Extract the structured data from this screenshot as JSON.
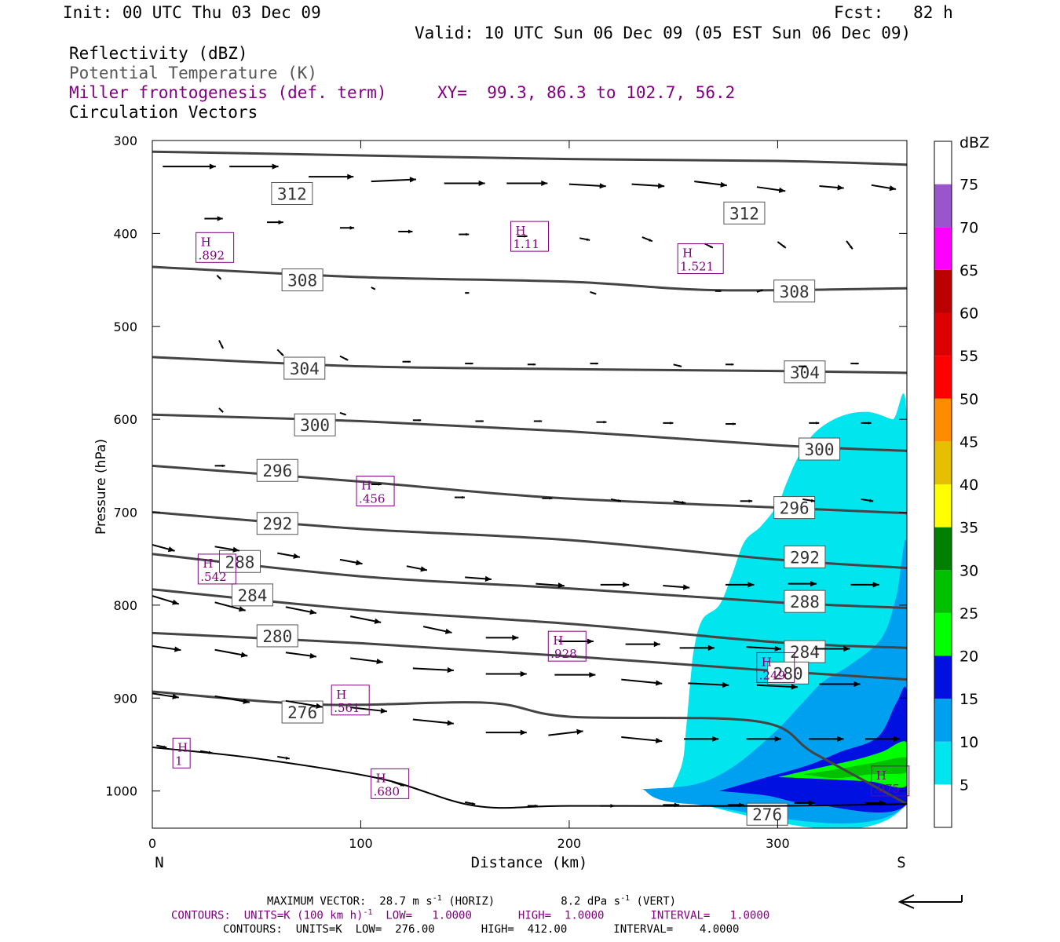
{
  "header": {
    "init": "Init: 00 UTC Thu 03 Dec 09",
    "fcst": "Fcst:   82 h",
    "valid": "Valid: 10 UTC Sun 06 Dec 09 (05 EST Sun 06 Dec 09)",
    "field_reflectivity": "Reflectivity (dBZ)",
    "field_theta": "Potential Temperature (K)",
    "field_frontogenesis": "Miller frontogenesis (def. term)",
    "xy_range": "XY=  99.3, 86.3 to 102.7, 56.2",
    "field_vectors": "Circulation Vectors"
  },
  "footer": {
    "max_vector_prefix": "MAXIMUM VECTOR:  28.7 m s",
    "max_vector_exp1": "-1",
    "max_vector_horiz": " (HORIZ)",
    "max_vector_vert_prefix": "8.2 dPa s",
    "max_vector_exp2": "-1",
    "max_vector_vert": " (VERT)",
    "contours_fronto_a": "CONTOURS:  UNITS=K (100 km h)",
    "contours_fronto_exp": "-1",
    "contours_fronto_b": "  LOW=   1.0000       HIGH=  1.0000       INTERVAL=   1.0000",
    "contours_theta": "CONTOURS:  UNITS=K  LOW=  276.00       HIGH=  412.00       INTERVAL=    4.0000"
  },
  "colors": {
    "theta": "#444444",
    "vectors": "#000000",
    "fronto": "#800080",
    "fill_5": "#00e5ee",
    "fill_10": "#00a0f0",
    "fill_15": "#0010e0",
    "fill_20": "#00ff00",
    "fill_25": "#00c000"
  },
  "chart_data": {
    "type": "cross-section",
    "xlabel": "Distance (km)",
    "ylabel": "Pressure (hPa)",
    "xlim": [
      0,
      362
    ],
    "ylim": [
      300,
      1040
    ],
    "y_scale": "pressure (inverted)",
    "x_ticks": [
      0,
      100,
      200,
      300
    ],
    "y_ticks": [
      300,
      400,
      500,
      600,
      700,
      800,
      900,
      1000
    ],
    "x_end_labels": [
      "N",
      "S"
    ],
    "colorbar": {
      "title": "dBZ",
      "levels": [
        5,
        10,
        15,
        20,
        25,
        30,
        35,
        40,
        45,
        50,
        55,
        60,
        65,
        70,
        75
      ],
      "colors": [
        "#ffffff",
        "#00e5ee",
        "#00a0f0",
        "#0010e0",
        "#00ff00",
        "#00c000",
        "#008000",
        "#ffff00",
        "#e6c000",
        "#ff8c00",
        "#ff0000",
        "#dd0000",
        "#bb0000",
        "#ff00ff",
        "#9955cc",
        "#ffffff"
      ]
    },
    "theta_contours": [
      {
        "label": "312",
        "points": [
          [
            0,
            312
          ],
          [
            100,
            316
          ],
          [
            200,
            320
          ],
          [
            300,
            322
          ],
          [
            362,
            326
          ]
        ],
        "labels_at": [
          [
            67,
            357
          ],
          [
            284,
            378
          ]
        ]
      },
      {
        "label": "308",
        "points": [
          [
            0,
            436
          ],
          [
            100,
            447
          ],
          [
            200,
            452
          ],
          [
            270,
            461
          ],
          [
            362,
            459
          ]
        ],
        "labels_at": [
          [
            72,
            450
          ],
          [
            308,
            462
          ]
        ]
      },
      {
        "label": "304",
        "points": [
          [
            0,
            533
          ],
          [
            100,
            543
          ],
          [
            200,
            546
          ],
          [
            300,
            548
          ],
          [
            362,
            550
          ]
        ],
        "labels_at": [
          [
            73,
            545
          ],
          [
            313,
            549
          ]
        ]
      },
      {
        "label": "300",
        "points": [
          [
            0,
            595
          ],
          [
            100,
            602
          ],
          [
            200,
            613
          ],
          [
            300,
            628
          ],
          [
            362,
            634
          ]
        ],
        "labels_at": [
          [
            78,
            606
          ],
          [
            320,
            632
          ]
        ]
      },
      {
        "label": "296",
        "points": [
          [
            0,
            650
          ],
          [
            100,
            667
          ],
          [
            190,
            684
          ],
          [
            300,
            695
          ],
          [
            362,
            701
          ]
        ],
        "labels_at": [
          [
            60,
            655
          ],
          [
            308,
            695
          ]
        ]
      },
      {
        "label": "292",
        "points": [
          [
            0,
            700
          ],
          [
            100,
            718
          ],
          [
            200,
            730
          ],
          [
            300,
            751
          ],
          [
            362,
            760
          ]
        ],
        "labels_at": [
          [
            60,
            712
          ],
          [
            313,
            748
          ]
        ]
      },
      {
        "label": "288",
        "points": [
          [
            0,
            745
          ],
          [
            100,
            769
          ],
          [
            200,
            782
          ],
          [
            300,
            797
          ],
          [
            362,
            803
          ]
        ],
        "labels_at": [
          [
            42,
            753
          ],
          [
            313,
            796
          ]
        ]
      },
      {
        "label": "284",
        "points": [
          [
            0,
            783
          ],
          [
            100,
            805
          ],
          [
            200,
            820
          ],
          [
            300,
            840
          ],
          [
            362,
            846
          ]
        ],
        "labels_at": [
          [
            48,
            789
          ],
          [
            313,
            850
          ]
        ]
      },
      {
        "label": "280",
        "points": [
          [
            0,
            830
          ],
          [
            100,
            841
          ],
          [
            200,
            855
          ],
          [
            300,
            871
          ],
          [
            362,
            880
          ]
        ],
        "labels_at": [
          [
            60,
            833
          ],
          [
            305,
            873
          ]
        ]
      },
      {
        "label": "276",
        "points": [
          [
            0,
            893
          ],
          [
            80,
            907
          ],
          [
            160,
            905
          ],
          [
            200,
            920
          ],
          [
            290,
            925
          ],
          [
            318,
            960
          ],
          [
            362,
            1014
          ]
        ],
        "labels_at": [
          [
            72,
            915
          ],
          [
            295,
            1025
          ]
        ]
      }
    ],
    "frontogenesis_highs": [
      {
        "label": "H",
        "value": ".892",
        "x": 30,
        "p": 416
      },
      {
        "label": "H",
        "value": "1.11",
        "x": 181,
        "p": 404
      },
      {
        "label": "H",
        "value": "1.521",
        "x": 263,
        "p": 428
      },
      {
        "label": "H",
        "value": ".456",
        "x": 107,
        "p": 678
      },
      {
        "label": "H",
        "value": ".542",
        "x": 31,
        "p": 762
      },
      {
        "label": "H",
        "value": ".928",
        "x": 199,
        "p": 845
      },
      {
        "label": "H",
        "value": ".561",
        "x": 95,
        "p": 903
      },
      {
        "label": "H",
        "value": "1",
        "x": 14,
        "p": 960
      },
      {
        "label": "H",
        "value": ".680",
        "x": 114,
        "p": 993
      },
      {
        "label": "H",
        "value": ".249",
        "x": 299,
        "p": 868
      },
      {
        "label": "H",
        "value": ".075",
        "x": 354,
        "p": 990
      }
    ],
    "reflectivity_regions": [
      {
        "dbz": 5,
        "outline": [
          [
            247,
            1008
          ],
          [
            254,
            972
          ],
          [
            256,
            935
          ],
          [
            258,
            885
          ],
          [
            260,
            845
          ],
          [
            264,
            815
          ],
          [
            272,
            800
          ],
          [
            278,
            768
          ],
          [
            284,
            732
          ],
          [
            292,
            715
          ],
          [
            300,
            692
          ],
          [
            304,
            670
          ],
          [
            310,
            640
          ],
          [
            318,
            614
          ],
          [
            330,
            597
          ],
          [
            343,
            592
          ],
          [
            355,
            600
          ],
          [
            362,
            603
          ],
          [
            362,
            1012
          ]
        ]
      },
      {
        "dbz": 10,
        "outline": [
          [
            235,
            998
          ],
          [
            260,
            993
          ],
          [
            278,
            975
          ],
          [
            298,
            938
          ],
          [
            312,
            905
          ],
          [
            322,
            882
          ],
          [
            335,
            864
          ],
          [
            350,
            835
          ],
          [
            357,
            790
          ],
          [
            362,
            740
          ],
          [
            362,
            1014
          ],
          [
            258,
            1014
          ]
        ]
      },
      {
        "dbz": 15,
        "outline": [
          [
            272,
            1000
          ],
          [
            295,
            985
          ],
          [
            315,
            972
          ],
          [
            330,
            958
          ],
          [
            348,
            942
          ],
          [
            357,
            905
          ],
          [
            362,
            895
          ],
          [
            362,
            1014
          ],
          [
            316,
            1014
          ],
          [
            295,
            1005
          ]
        ]
      },
      {
        "dbz": 20,
        "outline": [
          [
            300,
            985
          ],
          [
            320,
            975
          ],
          [
            338,
            966
          ],
          [
            350,
            958
          ],
          [
            362,
            948
          ],
          [
            362,
            994
          ],
          [
            345,
            990
          ],
          [
            330,
            988
          ]
        ]
      },
      {
        "dbz": 25,
        "outline": [
          [
            312,
            982
          ],
          [
            330,
            976
          ],
          [
            345,
            970
          ],
          [
            362,
            964
          ],
          [
            362,
            980
          ],
          [
            345,
            982
          ],
          [
            328,
            986
          ]
        ]
      }
    ],
    "vectors_note": "circulation vectors shown as arrows; max vector 28.7 m/s (horiz), 8.2 dPa/s (vert)",
    "vectors": [
      [
        5,
        328,
        26,
        0
      ],
      [
        37,
        328,
        24,
        0
      ],
      [
        75,
        339,
        22,
        0
      ],
      [
        105,
        344,
        22,
        -1
      ],
      [
        140,
        346,
        20,
        0
      ],
      [
        170,
        346,
        20,
        0
      ],
      [
        200,
        347,
        18,
        1
      ],
      [
        230,
        347,
        16,
        1
      ],
      [
        260,
        344,
        16,
        2
      ],
      [
        290,
        350,
        14,
        2
      ],
      [
        320,
        349,
        12,
        1
      ],
      [
        345,
        348,
        12,
        2
      ],
      [
        25,
        384,
        9,
        0
      ],
      [
        55,
        388,
        8,
        0
      ],
      [
        90,
        394,
        7,
        0
      ],
      [
        118,
        398,
        7,
        0
      ],
      [
        147,
        401,
        5,
        0
      ],
      [
        175,
        403,
        5,
        0
      ],
      [
        205,
        405,
        5,
        1
      ],
      [
        235,
        404,
        5,
        2
      ],
      [
        265,
        411,
        4,
        2
      ],
      [
        300,
        409,
        4,
        3
      ],
      [
        333,
        408,
        3,
        4
      ],
      [
        31,
        445,
        2,
        2
      ],
      [
        105,
        458,
        2,
        1
      ],
      [
        150,
        464,
        2,
        0
      ],
      [
        210,
        463,
        3,
        1
      ],
      [
        270,
        462,
        3,
        0
      ],
      [
        290,
        463,
        3,
        -1
      ],
      [
        32,
        515,
        2,
        4
      ],
      [
        60,
        525,
        3,
        3
      ],
      [
        90,
        532,
        4,
        2
      ],
      [
        120,
        538,
        4,
        0
      ],
      [
        150,
        540,
        4,
        0
      ],
      [
        180,
        541,
        4,
        0
      ],
      [
        210,
        540,
        4,
        0
      ],
      [
        250,
        541,
        4,
        1
      ],
      [
        275,
        541,
        4,
        0
      ],
      [
        310,
        543,
        4,
        0
      ],
      [
        335,
        540,
        4,
        0
      ],
      [
        32,
        588,
        2,
        2
      ],
      [
        90,
        593,
        3,
        1
      ],
      [
        125,
        601,
        4,
        0
      ],
      [
        155,
        602,
        4,
        0
      ],
      [
        183,
        602,
        4,
        0
      ],
      [
        213,
        603,
        5,
        0
      ],
      [
        245,
        604,
        5,
        0
      ],
      [
        275,
        605,
        5,
        0
      ],
      [
        315,
        604,
        5,
        0
      ],
      [
        340,
        604,
        5,
        0
      ],
      [
        30,
        650,
        5,
        0
      ],
      [
        105,
        670,
        5,
        0
      ],
      [
        145,
        684,
        5,
        0
      ],
      [
        187,
        685,
        5,
        0
      ],
      [
        220,
        686,
        5,
        1
      ],
      [
        250,
        688,
        6,
        1
      ],
      [
        282,
        688,
        6,
        0
      ],
      [
        312,
        686,
        6,
        1
      ],
      [
        340,
        686,
        6,
        1
      ],
      [
        0,
        735,
        11,
        3
      ],
      [
        30,
        737,
        12,
        2
      ],
      [
        60,
        744,
        11,
        2
      ],
      [
        90,
        751,
        11,
        2
      ],
      [
        122,
        758,
        10,
        2
      ],
      [
        150,
        770,
        13,
        1
      ],
      [
        184,
        777,
        14,
        1
      ],
      [
        215,
        778,
        14,
        0
      ],
      [
        245,
        779,
        13,
        1
      ],
      [
        275,
        778,
        14,
        0
      ],
      [
        305,
        777,
        14,
        0
      ],
      [
        335,
        778,
        14,
        0
      ],
      [
        0,
        790,
        13,
        4
      ],
      [
        30,
        797,
        15,
        4
      ],
      [
        64,
        802,
        15,
        3
      ],
      [
        95,
        812,
        15,
        3
      ],
      [
        130,
        823,
        14,
        3
      ],
      [
        160,
        835,
        16,
        0
      ],
      [
        195,
        839,
        17,
        0
      ],
      [
        227,
        842,
        17,
        0
      ],
      [
        253,
        846,
        17,
        0
      ],
      [
        285,
        845,
        17,
        1
      ],
      [
        318,
        847,
        17,
        0
      ],
      [
        0,
        844,
        14,
        2
      ],
      [
        30,
        848,
        16,
        3
      ],
      [
        64,
        851,
        15,
        2
      ],
      [
        95,
        857,
        16,
        2
      ],
      [
        125,
        868,
        20,
        1
      ],
      [
        160,
        874,
        20,
        0
      ],
      [
        193,
        875,
        20,
        0
      ],
      [
        225,
        880,
        20,
        2
      ],
      [
        257,
        884,
        20,
        1
      ],
      [
        290,
        886,
        20,
        1
      ],
      [
        320,
        885,
        20,
        0
      ],
      [
        0,
        895,
        13,
        2
      ],
      [
        30,
        898,
        17,
        3
      ],
      [
        64,
        903,
        18,
        3
      ],
      [
        95,
        910,
        18,
        2
      ],
      [
        125,
        923,
        20,
        2
      ],
      [
        160,
        937,
        20,
        0
      ],
      [
        190,
        940,
        17,
        -2
      ],
      [
        225,
        942,
        20,
        2
      ],
      [
        255,
        944,
        17,
        0
      ],
      [
        285,
        944,
        17,
        0
      ],
      [
        315,
        944,
        17,
        0
      ],
      [
        342,
        944,
        17,
        0
      ],
      [
        2,
        951,
        5,
        1
      ],
      [
        23,
        957,
        6,
        1
      ],
      [
        60,
        963,
        6,
        1
      ],
      [
        115,
        990,
        6,
        2
      ],
      [
        150,
        1012,
        5,
        1
      ],
      [
        180,
        1016,
        5,
        0
      ],
      [
        215,
        1016,
        7,
        0
      ],
      [
        245,
        1015,
        8,
        0
      ],
      [
        276,
        1015,
        8,
        0
      ],
      [
        308,
        1013,
        10,
        0
      ],
      [
        342,
        1013,
        10,
        0
      ]
    ]
  }
}
